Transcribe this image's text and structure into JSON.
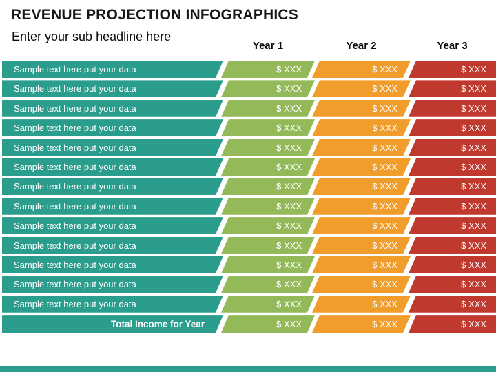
{
  "header": {
    "title": "REVENUE PROJECTION INFOGRAPHICS",
    "subtitle": "Enter your sub headline here",
    "year_columns": [
      "Year 1",
      "Year 2",
      "Year 3"
    ]
  },
  "table": {
    "rows": [
      {
        "label": "Sample text here put your data",
        "values": [
          "$ XXX",
          "$ XXX",
          "$ XXX"
        ]
      },
      {
        "label": "Sample text here put your data",
        "values": [
          "$ XXX",
          "$ XXX",
          "$ XXX"
        ]
      },
      {
        "label": "Sample text here put your data",
        "values": [
          "$ XXX",
          "$ XXX",
          "$ XXX"
        ]
      },
      {
        "label": "Sample text here put your data",
        "values": [
          "$ XXX",
          "$ XXX",
          "$ XXX"
        ]
      },
      {
        "label": "Sample text here put your data",
        "values": [
          "$ XXX",
          "$ XXX",
          "$ XXX"
        ]
      },
      {
        "label": "Sample text here put your data",
        "values": [
          "$ XXX",
          "$ XXX",
          "$ XXX"
        ]
      },
      {
        "label": "Sample text here put your data",
        "values": [
          "$ XXX",
          "$ XXX",
          "$ XXX"
        ]
      },
      {
        "label": "Sample text here put your data",
        "values": [
          "$ XXX",
          "$ XXX",
          "$ XXX"
        ]
      },
      {
        "label": "Sample text here put your data",
        "values": [
          "$ XXX",
          "$ XXX",
          "$ XXX"
        ]
      },
      {
        "label": "Sample text here put your data",
        "values": [
          "$ XXX",
          "$ XXX",
          "$ XXX"
        ]
      },
      {
        "label": "Sample text here put your data",
        "values": [
          "$ XXX",
          "$ XXX",
          "$ XXX"
        ]
      },
      {
        "label": "Sample text here put your data",
        "values": [
          "$ XXX",
          "$ XXX",
          "$ XXX"
        ]
      },
      {
        "label": "Sample text here put your data",
        "values": [
          "$ XXX",
          "$ XXX",
          "$ XXX"
        ]
      }
    ],
    "total_row": {
      "label": "Total Income for Year",
      "values": [
        "$ XXX",
        "$ XXX",
        "$ XXX"
      ]
    }
  },
  "colors": {
    "label_bar": "#2a9d8c",
    "year1": "#93b958",
    "year2": "#f09d2b",
    "year3": "#c0392e",
    "bottom_strip": "#2a9d8c",
    "row_text": "#ffffff",
    "heading_text": "#161616"
  }
}
